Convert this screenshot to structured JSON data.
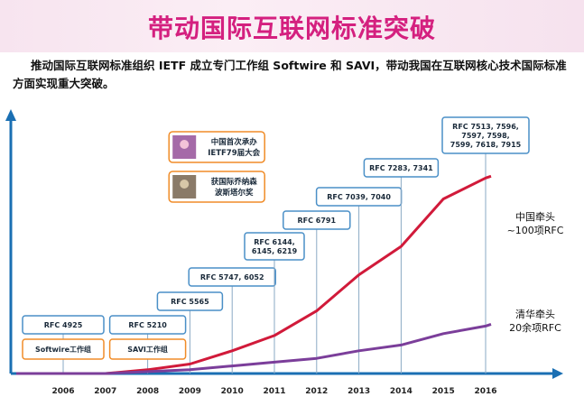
{
  "header": {
    "title": "带动国际互联网标准突破",
    "intro": "推动国际互联网标准组织 IETF 成立专门工作组 Softwire 和 SAVI，带动我国在互联网核心技术国际标准方面实现重大突破。"
  },
  "chart_data": {
    "type": "line",
    "title": "",
    "xlabel": "",
    "ylabel": "",
    "categories": [
      "2006",
      "2007",
      "2008",
      "2009",
      "2010",
      "2011",
      "2012",
      "2013",
      "2014",
      "2015",
      "2016"
    ],
    "series": [
      {
        "name": "中国牵头",
        "label_lines": [
          "中国牵头",
          "~100项RFC"
        ],
        "color": "#d11a3a",
        "values": [
          0,
          0,
          2,
          5,
          12,
          20,
          33,
          52,
          67,
          92,
          103
        ]
      },
      {
        "name": "清华牵头",
        "label_lines": [
          "清华牵头",
          "20余项RFC"
        ],
        "color": "#7b3e9a",
        "values": [
          0,
          0,
          1,
          2,
          4,
          6,
          8,
          12,
          15,
          21,
          25
        ]
      }
    ],
    "ylim": [
      0,
      135
    ],
    "annotations": [
      {
        "year": "2006",
        "box": "RFC 4925",
        "wg": "Softwire工作组"
      },
      {
        "year": "2008",
        "box": "RFC 5210",
        "wg": "SAVI工作组"
      },
      {
        "year": "2009",
        "box": "RFC 5565"
      },
      {
        "year": "2010",
        "box": "RFC 5747, 6052"
      },
      {
        "year": "2011",
        "box": "RFC 6144, 6145, 6219"
      },
      {
        "year": "2012",
        "box": "RFC 6791"
      },
      {
        "year": "2013",
        "box": "RFC 7039, 7040"
      },
      {
        "year": "2014",
        "box": "RFC 7283, 7341"
      },
      {
        "year": "2016",
        "box": "RFC 7513, 7596, 7597, 7598, 7599, 7618, 7915"
      }
    ],
    "events": [
      {
        "year": "2010",
        "text": "中国首次承办IETF79届大会"
      },
      {
        "year": "2010",
        "text": "获国际乔纳森波斯塔尔奖"
      }
    ]
  },
  "colors": {
    "accent": "#d4207f",
    "axis": "#1a6fb3",
    "box_blue": "#4a8fc7",
    "box_orange": "#f08c28"
  }
}
